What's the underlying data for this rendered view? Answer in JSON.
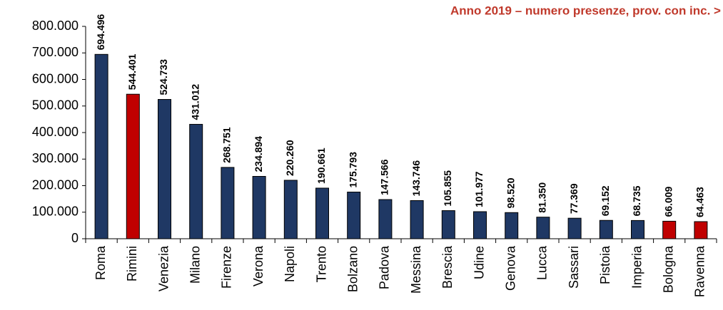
{
  "chart_data": {
    "type": "bar",
    "title": "Anno 2019 – numero presenze, prov. con inc. >",
    "categories": [
      "Roma",
      "Rimini",
      "Venezia",
      "Milano",
      "Firenze",
      "Verona",
      "Napoli",
      "Trento",
      "Bolzano",
      "Padova",
      "Messina",
      "Brescia",
      "Udine",
      "Genova",
      "Lucca",
      "Sassari",
      "Pistoia",
      "Imperia",
      "Bologna",
      "Ravenna"
    ],
    "values": [
      694496,
      544401,
      524733,
      431012,
      268751,
      234894,
      220260,
      190661,
      175793,
      147566,
      143746,
      105855,
      101977,
      98520,
      81350,
      77369,
      69152,
      68735,
      66009,
      64463
    ],
    "value_labels": [
      "694.496",
      "544.401",
      "524.733",
      "431.012",
      "268.751",
      "234.894",
      "220.260",
      "190.661",
      "175.793",
      "147.566",
      "143.746",
      "105.855",
      "101.977",
      "98.520",
      "81.350",
      "77.369",
      "69.152",
      "68.735",
      "66.009",
      "64.463"
    ],
    "colors": [
      "#1f3864",
      "#c00000",
      "#1f3864",
      "#1f3864",
      "#1f3864",
      "#1f3864",
      "#1f3864",
      "#1f3864",
      "#1f3864",
      "#1f3864",
      "#1f3864",
      "#1f3864",
      "#1f3864",
      "#1f3864",
      "#1f3864",
      "#1f3864",
      "#1f3864",
      "#1f3864",
      "#c00000",
      "#c00000"
    ],
    "ylim": [
      0,
      800000
    ],
    "yticks": [
      0,
      {
        "value": 100000,
        "label": "100.000"
      },
      {
        "value": 200000,
        "label": "200.000"
      },
      {
        "value": 300000,
        "label": "300.000"
      },
      {
        "value": 400000,
        "label": "400.000"
      },
      {
        "value": 500000,
        "label": "500.000"
      },
      {
        "value": 600000,
        "label": "600.000"
      },
      {
        "value": 700000,
        "label": "700.000"
      },
      {
        "value": 800000,
        "label": "800.000"
      }
    ]
  }
}
